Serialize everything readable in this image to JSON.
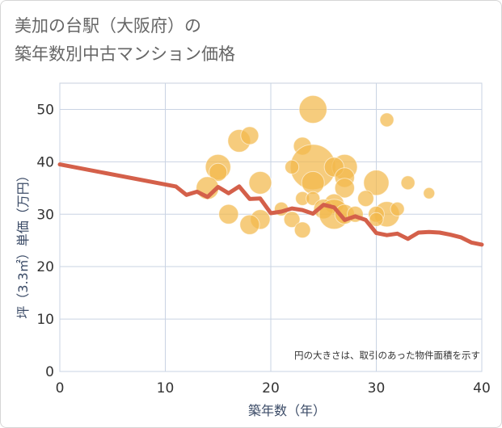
{
  "title": {
    "line1": "美加の台駅（大阪府）の",
    "line2": "築年数別中古マンション価格"
  },
  "colors": {
    "bubble": "#f2b84b",
    "line": "#d4604a",
    "grid": "#c9d3e3",
    "plot_border": "#c7cfdc"
  },
  "chart_data": {
    "type": "scatter",
    "xlabel": "築年数（年）",
    "ylabel": "坪（3.3㎡）単価（万円）",
    "xlim": [
      0,
      40
    ],
    "ylim": [
      0,
      55
    ],
    "xticks": [
      "0",
      "10",
      "20",
      "30",
      "40"
    ],
    "yticks": [
      "0",
      "10",
      "20",
      "30",
      "40",
      "50"
    ],
    "grid": true,
    "note": "円の大きさは、取引のあった物件面積を示す",
    "bubbles": [
      {
        "x": 24,
        "y": 50,
        "size": 6
      },
      {
        "x": 31,
        "y": 48,
        "size": 1.5
      },
      {
        "x": 17,
        "y": 44,
        "size": 4
      },
      {
        "x": 18,
        "y": 45,
        "size": 2.5
      },
      {
        "x": 23,
        "y": 43,
        "size": 2.5
      },
      {
        "x": 24,
        "y": 39,
        "size": 16
      },
      {
        "x": 27,
        "y": 39,
        "size": 5
      },
      {
        "x": 15,
        "y": 39,
        "size": 5
      },
      {
        "x": 15,
        "y": 38,
        "size": 2.5
      },
      {
        "x": 26,
        "y": 39,
        "size": 3
      },
      {
        "x": 27,
        "y": 37,
        "size": 3
      },
      {
        "x": 24,
        "y": 36,
        "size": 4
      },
      {
        "x": 30,
        "y": 36,
        "size": 5
      },
      {
        "x": 19,
        "y": 36,
        "size": 4
      },
      {
        "x": 33,
        "y": 36,
        "size": 1.5
      },
      {
        "x": 14,
        "y": 35,
        "size": 4
      },
      {
        "x": 27,
        "y": 35,
        "size": 3
      },
      {
        "x": 22,
        "y": 39,
        "size": 1.5
      },
      {
        "x": 35,
        "y": 34,
        "size": 1
      },
      {
        "x": 23,
        "y": 33,
        "size": 1.5
      },
      {
        "x": 24,
        "y": 33,
        "size": 1.5
      },
      {
        "x": 29,
        "y": 33,
        "size": 2
      },
      {
        "x": 26,
        "y": 32,
        "size": 3
      },
      {
        "x": 25,
        "y": 31,
        "size": 3
      },
      {
        "x": 26,
        "y": 30,
        "size": 7
      },
      {
        "x": 27,
        "y": 30,
        "size": 3
      },
      {
        "x": 31,
        "y": 30,
        "size": 5
      },
      {
        "x": 32,
        "y": 31,
        "size": 1.5
      },
      {
        "x": 21,
        "y": 31,
        "size": 1.5
      },
      {
        "x": 16,
        "y": 30,
        "size": 3
      },
      {
        "x": 19,
        "y": 29,
        "size": 3
      },
      {
        "x": 22,
        "y": 29,
        "size": 2
      },
      {
        "x": 28,
        "y": 30,
        "size": 2
      },
      {
        "x": 30,
        "y": 30,
        "size": 2
      },
      {
        "x": 18,
        "y": 28,
        "size": 3
      },
      {
        "x": 23,
        "y": 27,
        "size": 2
      },
      {
        "x": 30,
        "y": 29,
        "size": 1.5
      }
    ],
    "line": {
      "x": [
        0,
        11,
        12,
        13,
        14,
        15,
        16,
        17,
        18,
        19,
        20,
        21,
        22,
        23,
        24,
        25,
        26,
        27,
        28,
        29,
        30,
        31,
        32,
        33,
        34,
        35,
        36,
        37,
        38,
        39,
        40
      ],
      "y": [
        39.5,
        35.3,
        33.7,
        34.3,
        33.3,
        35.2,
        34.0,
        35.3,
        32.9,
        33.0,
        30.2,
        30.5,
        31.1,
        30.8,
        30.1,
        31.8,
        31.3,
        28.9,
        29.6,
        28.9,
        26.4,
        26.0,
        26.3,
        25.3,
        26.5,
        26.6,
        26.5,
        26.1,
        25.6,
        24.6,
        24.2
      ]
    }
  }
}
